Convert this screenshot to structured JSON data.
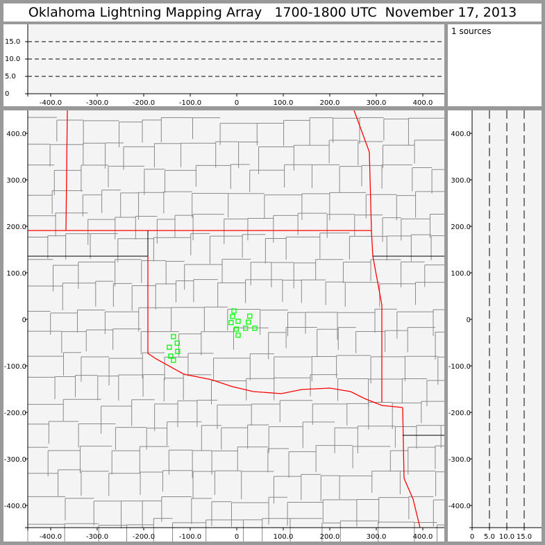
{
  "title": "Oklahoma Lightning Mapping Array   1700-1800 UTC  November 17, 2013",
  "info": {
    "source_count_label": "1 sources"
  },
  "colors": {
    "background": "#999999",
    "plot_bg": "#f4f4f4",
    "state_border": "#ff0000",
    "county_line": "#888888",
    "source_marker": "#00ff00"
  },
  "chart_data": [
    {
      "type": "scatter",
      "panel": "altitude-vs-east-west",
      "xlim": [
        -438,
        438
      ],
      "ylim": [
        0,
        20
      ],
      "x_ticks": [
        "-400.0",
        "-300.0",
        "-200.0",
        "-100.0",
        "0",
        "100.0",
        "200.0",
        "300.0",
        "400.0"
      ],
      "y_ticks": [
        "0",
        "5.0",
        "10.0",
        "15.0"
      ],
      "gridlines": "dashed at 5, 10, 15",
      "points": []
    },
    {
      "type": "scatter",
      "panel": "plan-view-map",
      "xlim": [
        -448,
        448
      ],
      "ylim": [
        -448,
        448
      ],
      "x_ticks": [
        "-400.0",
        "-300.0",
        "-200.0",
        "-100.0",
        "0",
        "100.0",
        "200.0",
        "300.0",
        "400.0"
      ],
      "y_ticks": [
        "400.0",
        "300.0",
        "200.0",
        "100.0",
        "0",
        "-100.0",
        "-200.0",
        "-300.0",
        "-400.0"
      ],
      "marker": "hollow-square",
      "points": [
        {
          "x": -6,
          "y": 18
        },
        {
          "x": -9,
          "y": 6
        },
        {
          "x": -12,
          "y": -7
        },
        {
          "x": 3,
          "y": -4
        },
        {
          "x": 28,
          "y": 7
        },
        {
          "x": 25,
          "y": -6
        },
        {
          "x": -1,
          "y": -21
        },
        {
          "x": 19,
          "y": -19
        },
        {
          "x": 39,
          "y": -19
        },
        {
          "x": 3,
          "y": -34
        },
        {
          "x": -136,
          "y": -37
        },
        {
          "x": -128,
          "y": -51
        },
        {
          "x": -145,
          "y": -60
        },
        {
          "x": -127,
          "y": -69
        },
        {
          "x": -142,
          "y": -79
        },
        {
          "x": -136,
          "y": -88
        }
      ]
    },
    {
      "type": "scatter",
      "panel": "north-south-vs-altitude",
      "xlim": [
        0,
        20
      ],
      "ylim": [
        -448,
        448
      ],
      "x_ticks": [
        "0",
        "5.0",
        "10.0",
        "15.0"
      ],
      "y_ticks": [
        "400.0",
        "300.0",
        "200.0",
        "100.0",
        "0",
        "-100.0",
        "-200.0",
        "-300.0",
        "-400.0"
      ],
      "gridlines": "dashed at 5, 10, 15",
      "points": []
    }
  ]
}
